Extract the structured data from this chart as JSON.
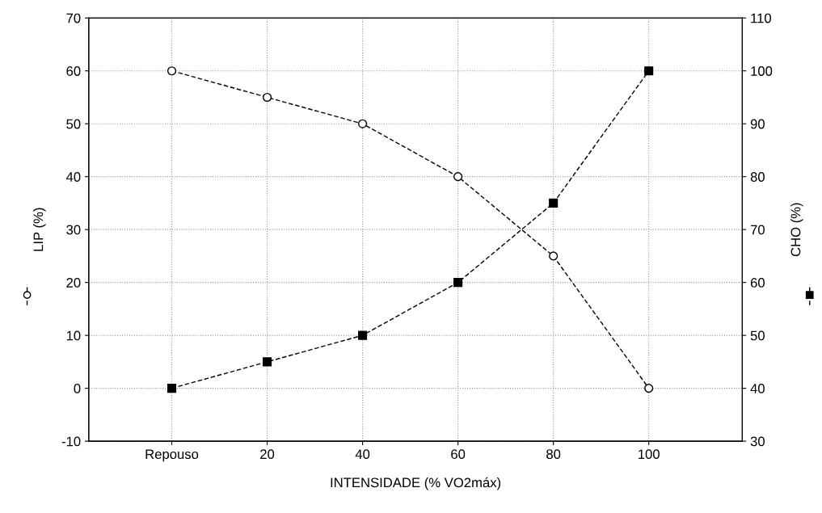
{
  "chart_data": {
    "type": "line",
    "xlabel": "INTENSIDADE (% VO2máx)",
    "ylabel": "LIP (%)",
    "y2label": "CHO (%)",
    "categories": [
      "Repouso",
      "20",
      "40",
      "60",
      "80",
      "100"
    ],
    "series": [
      {
        "color": "#000000",
        "marker": "circle",
        "values": [
          60,
          55,
          50,
          40,
          25,
          0
        ]
      },
      {
        "color": "#000000",
        "marker": "square",
        "axis": "y2",
        "values": [
          40,
          45,
          50,
          60,
          75,
          100
        ]
      }
    ],
    "ylim": [
      -10,
      70
    ],
    "yticks": [
      -10,
      0,
      10,
      20,
      30,
      40,
      50,
      60,
      70
    ],
    "y2lim": [
      30,
      110
    ],
    "y2ticks": [
      30,
      40,
      50,
      60,
      70,
      80,
      90,
      100,
      110
    ],
    "grid": true,
    "line_style": "dashed"
  }
}
